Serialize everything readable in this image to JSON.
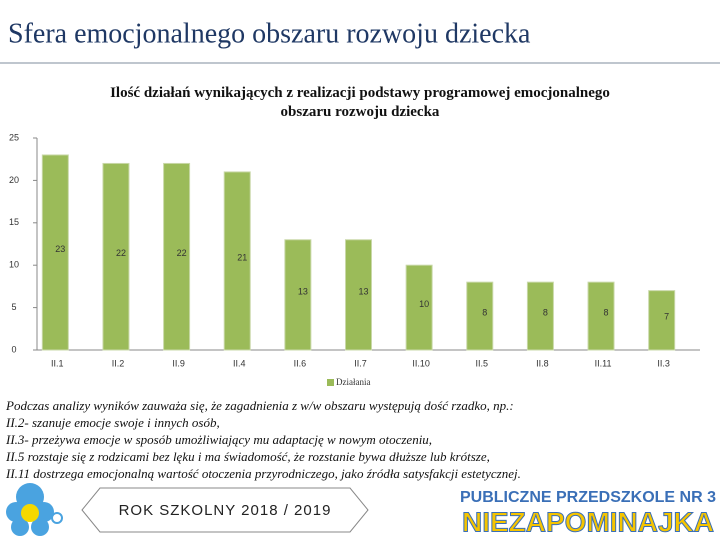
{
  "slide_title": "Sfera emocjonalnego obszaru rozwoju dziecka",
  "chart_data": {
    "type": "bar",
    "title": "Ilość działań wynikających z realizacji podstawy programowej emocjonalnego obszaru rozwoju dziecka",
    "categories": [
      "II.1",
      "II.2",
      "II.9",
      "II.4",
      "II.6",
      "II.7",
      "II.10",
      "II.5",
      "II.8",
      "II.11",
      "II.3"
    ],
    "series": [
      {
        "name": "Działania",
        "color": "#9bbb59",
        "values": [
          23,
          22,
          22,
          21,
          13,
          13,
          10,
          8,
          8,
          8,
          7
        ]
      }
    ],
    "ylim": [
      0,
      25
    ],
    "yticks": [
      0,
      5,
      10,
      15,
      20,
      25
    ],
    "grid": false,
    "legend": "bottom"
  },
  "notes": [
    "Podczas analizy wyników zauważa się, że zagadnienia z w/w obszaru występują dość rzadko, np.:",
    "II.2- szanuje emocje swoje i innych osób,",
    "II.3- przeżywa emocje w sposób umożliwiający mu adaptację w nowym otoczeniu,",
    "II.5 rozstaje się z rodzicami bez lęku i ma świadomość, że rozstanie bywa dłuższe lub krótsze,",
    "II.11 dostrzega emocjonalną wartość otoczenia przyrodniczego, jako źródła satysfakcji estetycznej."
  ],
  "footer": {
    "school_year": "ROK SZKOLNY 2018 / 2019",
    "school": "PUBLICZNE PRZEDSZKOLE NR 3",
    "name": "NIEZAPOMINAJKA"
  }
}
